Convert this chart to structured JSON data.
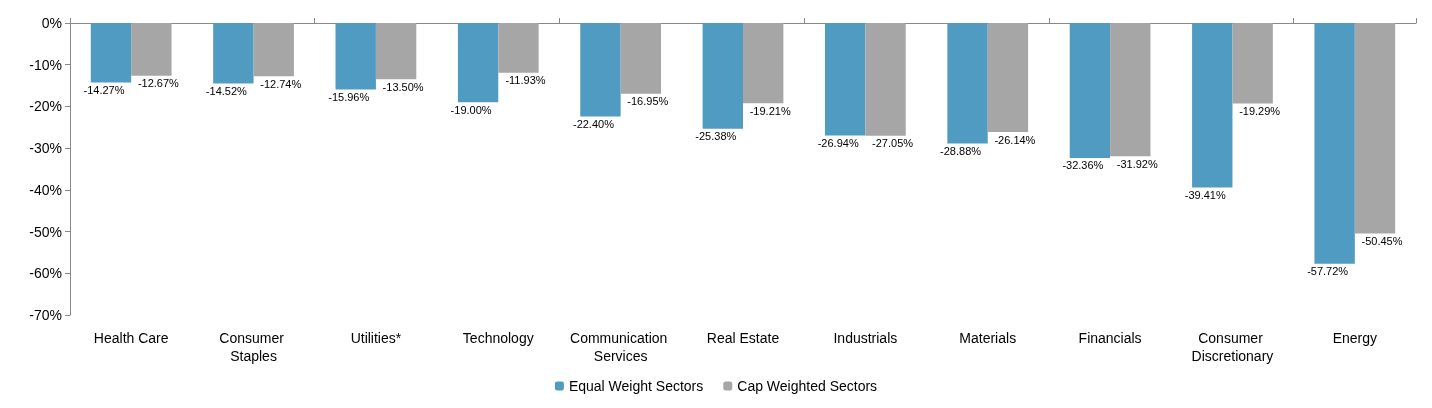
{
  "chart_data": {
    "type": "bar",
    "categories": [
      "Health Care",
      "Consumer Staples",
      "Utilities*",
      "Technology",
      "Communication Services",
      "Real Estate",
      "Industrials",
      "Materials",
      "Financials",
      "Consumer Discretionary",
      "Energy"
    ],
    "series": [
      {
        "name": "Equal Weight Sectors",
        "color": "#4f9bc2",
        "values": [
          -14.27,
          -14.52,
          -15.96,
          -19.0,
          -22.4,
          -25.38,
          -26.94,
          -28.88,
          -32.36,
          -39.41,
          -57.72
        ],
        "value_labels": [
          "-14.27%",
          "-14.52%",
          "-15.96%",
          "-19.00%",
          "-22.40%",
          "-25.38%",
          "-26.94%",
          "-28.88%",
          "-32.36%",
          "-39.41%",
          "-57.72%"
        ]
      },
      {
        "name": "Cap Weighted Sectors",
        "color": "#a6a6a6",
        "values": [
          -12.67,
          -12.74,
          -13.5,
          -11.93,
          -16.95,
          -19.21,
          -27.05,
          -26.14,
          -31.92,
          -19.29,
          -50.45
        ],
        "value_labels": [
          "-12.67%",
          "-12.74%",
          "-13.50%",
          "-11.93%",
          "-16.95%",
          "-19.21%",
          "-27.05%",
          "-26.14%",
          "-31.92%",
          "-19.29%",
          "-50.45%"
        ]
      }
    ],
    "ylim": [
      -70,
      0
    ],
    "yticks": [
      {
        "value": 0,
        "label": "0%"
      },
      {
        "value": -10,
        "label": "-10%"
      },
      {
        "value": -20,
        "label": "-20%"
      },
      {
        "value": -30,
        "label": "-30%"
      },
      {
        "value": -40,
        "label": "-40%"
      },
      {
        "value": -50,
        "label": "-50%"
      },
      {
        "value": -60,
        "label": "-60%"
      },
      {
        "value": -70,
        "label": "-70%"
      }
    ],
    "grid": false,
    "legend": "bottom"
  }
}
